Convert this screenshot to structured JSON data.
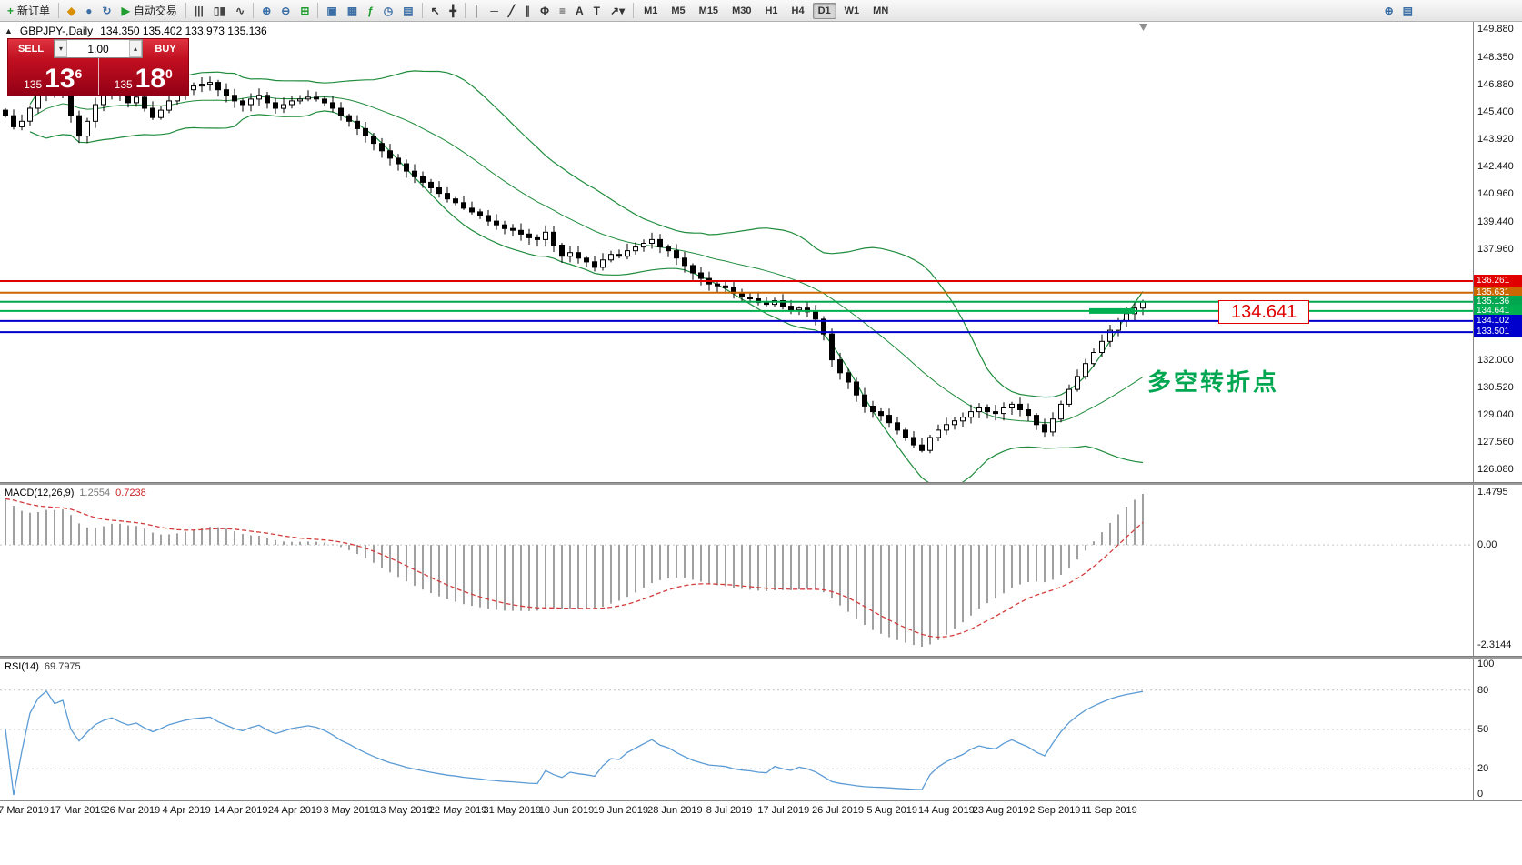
{
  "icons": {
    "collapse": "▲",
    "volume_up": "▴",
    "volume_down": "▾"
  },
  "toolbar": {
    "items": [
      {
        "name": "new-order-button",
        "glyph": "+",
        "color": "#1f9d2f",
        "label": "新订单"
      },
      {
        "sep": true
      },
      {
        "name": "profiles-button",
        "glyph": "◆",
        "color": "#d89000"
      },
      {
        "name": "market-watch-button",
        "glyph": "●",
        "color": "#3a6ea5"
      },
      {
        "name": "refresh-button",
        "glyph": "↻",
        "color": "#3a6ea5"
      },
      {
        "name": "auto-trading-button",
        "glyph": "▶",
        "color": "#1f9d2f",
        "label": "自动交易"
      },
      {
        "sep": true
      },
      {
        "name": "bar-chart-button",
        "glyph": "|||",
        "color": "#444444"
      },
      {
        "name": "candlestick-chart-button",
        "glyph": "▯▮",
        "color": "#444444"
      },
      {
        "name": "line-chart-button",
        "glyph": "∿",
        "color": "#444444"
      },
      {
        "sep": true
      },
      {
        "name": "zoom-in-button",
        "glyph": "⊕",
        "color": "#3a6ea5"
      },
      {
        "name": "zoom-out-button",
        "glyph": "⊖",
        "color": "#3a6ea5"
      },
      {
        "name": "tile-windows-button",
        "glyph": "⊞",
        "color": "#1f9d2f"
      },
      {
        "sep": true
      },
      {
        "name": "new-chart-button",
        "glyph": "▣",
        "color": "#3a6ea5"
      },
      {
        "name": "arrange-windows-button",
        "glyph": "▦",
        "color": "#3a6ea5"
      },
      {
        "name": "indicators-button",
        "glyph": "ƒ",
        "color": "#1f9d2f"
      },
      {
        "name": "periods-button",
        "glyph": "◷",
        "color": "#3a6ea5"
      },
      {
        "name": "templates-button",
        "glyph": "▤",
        "color": "#3a6ea5"
      },
      {
        "sep": true
      },
      {
        "name": "cursor-button",
        "glyph": "↖",
        "color": "#333333"
      },
      {
        "name": "crosshair-button",
        "glyph": "╋",
        "color": "#333333"
      },
      {
        "sep": true
      },
      {
        "name": "vertical-line-button",
        "glyph": "│",
        "color": "#333333"
      },
      {
        "name": "horizontal-line-button",
        "glyph": "─",
        "color": "#333333"
      },
      {
        "name": "trendline-button",
        "glyph": "╱",
        "color": "#333333"
      },
      {
        "name": "channel-button",
        "glyph": "∥",
        "color": "#333333"
      },
      {
        "name": "fibonacci-button",
        "glyph": "Φ",
        "color": "#333333"
      },
      {
        "name": "shapes-button",
        "glyph": "≡",
        "color": "#333333"
      },
      {
        "name": "text-button",
        "glyph": "A",
        "color": "#333333"
      },
      {
        "name": "label-button",
        "glyph": "T",
        "color": "#333333"
      },
      {
        "name": "arrows-button",
        "glyph": "↗▾",
        "color": "#333333"
      },
      {
        "sep": true
      }
    ],
    "timeframes": [
      {
        "label": "M1"
      },
      {
        "label": "M5"
      },
      {
        "label": "M15"
      },
      {
        "label": "M30"
      },
      {
        "label": "H1"
      },
      {
        "label": "H4"
      },
      {
        "label": "D1",
        "active": true
      },
      {
        "label": "W1"
      },
      {
        "label": "MN"
      }
    ],
    "right_items": [
      {
        "name": "symbol-search-button",
        "glyph": "⊕",
        "color": "#3a6ea5"
      },
      {
        "name": "quotes-popup-button",
        "glyph": "▤",
        "color": "#3a6ea5"
      }
    ]
  },
  "chart_header": {
    "symbol": "GBPJPY-,Daily",
    "ohlc": "134.350 135.402 133.973 135.136"
  },
  "trade_panel": {
    "sell_label": "SELL",
    "buy_label": "BUY",
    "volume": "1.00",
    "sell_price": {
      "small": "135",
      "big": "13",
      "sup": "6"
    },
    "buy_price": {
      "small": "135",
      "big": "18",
      "sup": "0"
    }
  },
  "overlays": {
    "price_flag": "134.641",
    "annotation": "多空转折点"
  },
  "chart_data": {
    "type": "candlestick",
    "symbol": "GBPJPY-",
    "timeframe": "Daily",
    "ohlc_display": {
      "open": "134.350",
      "high": "135.402",
      "low": "133.973",
      "close": "135.136"
    },
    "y_range": [
      126.08,
      149.88
    ],
    "y_axis_ticks": [
      "149.880",
      "148.350",
      "146.880",
      "145.400",
      "143.920",
      "142.440",
      "140.960",
      "139.440",
      "137.960",
      "132.000",
      "130.520",
      "129.040",
      "127.560",
      "126.080"
    ],
    "closes": [
      145.2,
      144.6,
      144.9,
      145.6,
      146.3,
      146.9,
      146.5,
      146.8,
      145.2,
      144.1,
      144.9,
      145.8,
      146.4,
      146.8,
      146.3,
      145.9,
      146.2,
      145.6,
      145.1,
      145.5,
      146.0,
      146.3,
      146.6,
      146.8,
      146.9,
      147.0,
      146.6,
      146.3,
      146.0,
      145.8,
      146.1,
      146.3,
      145.9,
      145.6,
      145.8,
      146.0,
      146.1,
      146.2,
      146.1,
      145.9,
      145.6,
      145.2,
      144.9,
      144.5,
      144.1,
      143.7,
      143.3,
      142.9,
      142.6,
      142.2,
      141.9,
      141.6,
      141.3,
      141.0,
      140.7,
      140.5,
      140.2,
      140.0,
      139.8,
      139.5,
      139.3,
      139.1,
      139.0,
      138.8,
      138.6,
      138.5,
      138.9,
      138.2,
      137.6,
      137.8,
      137.5,
      137.3,
      137.0,
      137.4,
      137.7,
      137.6,
      137.9,
      138.1,
      138.3,
      138.5,
      138.1,
      137.9,
      137.5,
      137.1,
      136.7,
      136.4,
      136.1,
      136.0,
      135.9,
      135.6,
      135.4,
      135.3,
      135.1,
      135.0,
      135.2,
      134.9,
      134.7,
      134.8,
      134.6,
      134.2,
      133.4,
      132.0,
      131.3,
      130.8,
      130.1,
      129.5,
      129.2,
      129.0,
      128.6,
      128.2,
      127.8,
      127.4,
      127.1,
      127.8,
      128.2,
      128.5,
      128.7,
      128.9,
      129.2,
      129.4,
      129.2,
      129.1,
      129.4,
      129.6,
      129.3,
      129.0,
      128.5,
      128.1,
      128.8,
      129.6,
      130.4,
      131.1,
      131.8,
      132.4,
      133.0,
      133.6,
      134.1,
      134.5,
      134.8,
      135.14
    ],
    "x_labels": [
      "7 Mar 2019",
      "17 Mar 2019",
      "26 Mar 2019",
      "4 Apr 2019",
      "14 Apr 2019",
      "24 Apr 2019",
      "3 May 2019",
      "13 May 2019",
      "22 May 2019",
      "31 May 2019",
      "10 Jun 2019",
      "19 Jun 2019",
      "28 Jun 2019",
      "8 Jul 2019",
      "17 Jul 2019",
      "26 Jul 2019",
      "5 Aug 2019",
      "14 Aug 2019",
      "23 Aug 2019",
      "2 Sep 2019",
      "11 Sep 2019"
    ],
    "levels": [
      {
        "price": 136.261,
        "label": "136.261",
        "color": "#e00000"
      },
      {
        "price": 135.631,
        "label": "135.631",
        "color": "#cc6600"
      },
      {
        "price": 135.136,
        "label": "135.136",
        "color": "#00a650"
      },
      {
        "price": 134.641,
        "label": "134.641",
        "color": "#00b050",
        "thick": true
      },
      {
        "price": 134.102,
        "label": "134.102",
        "color": "#0000cc"
      },
      {
        "price": 133.501,
        "label": "133.501",
        "color": "#0000cc"
      }
    ],
    "bollinger": {
      "period": 20,
      "deviation": 2,
      "color": "#1e8c3c"
    },
    "candle_colors": {
      "up": "#ffffff",
      "down": "#000000",
      "border": "#000000"
    },
    "macd": {
      "label": "MACD(12,26,9)",
      "values": [
        "1.2554",
        "0.7238"
      ],
      "axis": [
        {
          "t": "1.4795",
          "v": 1.4795
        },
        {
          "t": "0.00",
          "v": 0
        },
        {
          "t": "-2.3144",
          "v": -2.3144
        }
      ],
      "hist_color": "#a0a0a0",
      "signal_color": "#d43c3c"
    },
    "rsi": {
      "label": "RSI(14)",
      "value": "69.7975",
      "axis": [
        {
          "t": "100",
          "v": 100
        },
        {
          "t": "80",
          "v": 80
        },
        {
          "t": "50",
          "v": 50
        },
        {
          "t": "20",
          "v": 20
        },
        {
          "t": "0",
          "v": 0
        }
      ],
      "levels": [
        80,
        50,
        20
      ],
      "color": "#5b9bd5"
    }
  }
}
